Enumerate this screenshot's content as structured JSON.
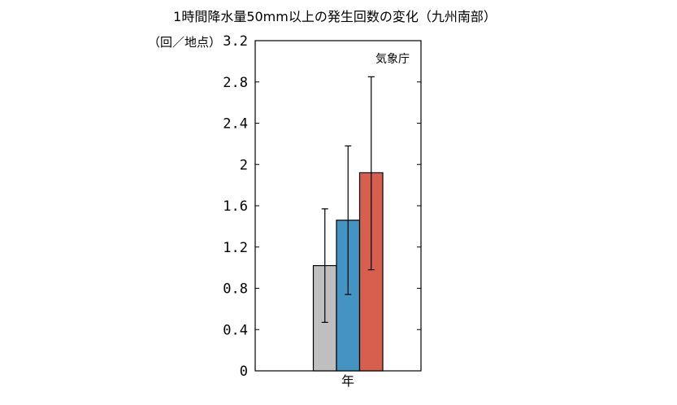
{
  "chart_data": {
    "type": "bar",
    "title": "1時間降水量50mm以上の発生回数の変化（九州南部）",
    "ylabel": "（回／地点）",
    "xlabel": "年",
    "source": "気象庁",
    "ylim": [
      0,
      3.2
    ],
    "yticks": [
      "0",
      "0.4",
      "0.8",
      "1.2",
      "1.6",
      "2",
      "2.4",
      "2.8",
      "3.2"
    ],
    "grid": false,
    "series": [
      {
        "value": 1.02,
        "error_low": 0.47,
        "error_high": 1.57,
        "color": "#bfbfbf"
      },
      {
        "value": 1.46,
        "error_low": 0.74,
        "error_high": 2.18,
        "color": "#4393c3"
      },
      {
        "value": 1.92,
        "error_low": 0.98,
        "error_high": 2.85,
        "color": "#d6604d"
      }
    ]
  }
}
